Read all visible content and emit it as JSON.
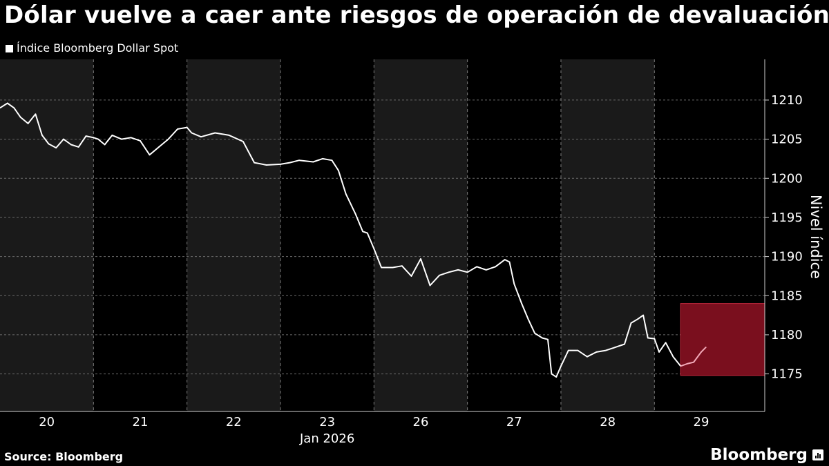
{
  "title": "Dólar vuelve a caer ante riesgos de operación de devaluación",
  "legend": "Índice Bloomberg Dollar Spot",
  "source": "Source: Bloomberg",
  "brand": "Bloomberg",
  "colors": {
    "background": "#000000",
    "band": "#1a1a1a",
    "line": "#ffffff",
    "highlight": "#7a0f1e",
    "highlight_line": "#f2a9b8"
  },
  "chart_data": {
    "type": "line",
    "title": "Dólar vuelve a caer ante riesgos de operación de devaluación",
    "ylabel": "Nivel índice",
    "xlabel": "Jan 2026",
    "series": [
      {
        "name": "Índice Bloomberg Dollar Spot",
        "points": [
          [
            0.0,
            1209.0
          ],
          [
            0.08,
            1209.6
          ],
          [
            0.15,
            1209.0
          ],
          [
            0.22,
            1207.8
          ],
          [
            0.3,
            1207.0
          ],
          [
            0.38,
            1208.2
          ],
          [
            0.45,
            1205.5
          ],
          [
            0.52,
            1204.4
          ],
          [
            0.6,
            1203.9
          ],
          [
            0.68,
            1205.0
          ],
          [
            0.76,
            1204.3
          ],
          [
            0.84,
            1204.0
          ],
          [
            0.92,
            1205.4
          ],
          [
            1.0,
            1205.2
          ],
          [
            1.05,
            1205.0
          ],
          [
            1.12,
            1204.3
          ],
          [
            1.2,
            1205.5
          ],
          [
            1.3,
            1205.0
          ],
          [
            1.4,
            1205.2
          ],
          [
            1.5,
            1204.8
          ],
          [
            1.6,
            1203.0
          ],
          [
            1.7,
            1204.0
          ],
          [
            1.8,
            1205.0
          ],
          [
            1.9,
            1206.3
          ],
          [
            2.0,
            1206.5
          ],
          [
            2.05,
            1205.8
          ],
          [
            2.15,
            1205.3
          ],
          [
            2.3,
            1205.8
          ],
          [
            2.45,
            1205.5
          ],
          [
            2.6,
            1204.7
          ],
          [
            2.72,
            1202.0
          ],
          [
            2.85,
            1201.7
          ],
          [
            3.0,
            1201.8
          ],
          [
            3.1,
            1202.0
          ],
          [
            3.2,
            1202.3
          ],
          [
            3.35,
            1202.1
          ],
          [
            3.45,
            1202.5
          ],
          [
            3.55,
            1202.3
          ],
          [
            3.62,
            1201.0
          ],
          [
            3.7,
            1198.0
          ],
          [
            3.8,
            1195.5
          ],
          [
            3.88,
            1193.2
          ],
          [
            3.93,
            1193.0
          ],
          [
            4.0,
            1191.0
          ],
          [
            4.08,
            1188.6
          ],
          [
            4.2,
            1188.6
          ],
          [
            4.3,
            1188.8
          ],
          [
            4.4,
            1187.5
          ],
          [
            4.5,
            1189.7
          ],
          [
            4.6,
            1186.3
          ],
          [
            4.7,
            1187.6
          ],
          [
            4.8,
            1188.0
          ],
          [
            4.9,
            1188.3
          ],
          [
            5.0,
            1188.0
          ],
          [
            5.1,
            1188.7
          ],
          [
            5.2,
            1188.3
          ],
          [
            5.3,
            1188.7
          ],
          [
            5.4,
            1189.6
          ],
          [
            5.45,
            1189.3
          ],
          [
            5.5,
            1186.5
          ],
          [
            5.58,
            1184.0
          ],
          [
            5.65,
            1182.0
          ],
          [
            5.72,
            1180.2
          ],
          [
            5.8,
            1179.6
          ],
          [
            5.86,
            1179.4
          ],
          [
            5.9,
            1175.0
          ],
          [
            5.95,
            1174.6
          ],
          [
            6.0,
            1176.0
          ],
          [
            6.08,
            1178.0
          ],
          [
            6.18,
            1178.0
          ],
          [
            6.28,
            1177.2
          ],
          [
            6.38,
            1177.8
          ],
          [
            6.48,
            1178.0
          ],
          [
            6.58,
            1178.4
          ],
          [
            6.68,
            1178.8
          ],
          [
            6.75,
            1181.5
          ],
          [
            6.82,
            1182.0
          ],
          [
            6.88,
            1182.5
          ],
          [
            6.93,
            1179.6
          ],
          [
            7.0,
            1179.5
          ],
          [
            7.05,
            1177.8
          ],
          [
            7.12,
            1179.0
          ],
          [
            7.2,
            1177.2
          ],
          [
            7.28,
            1176.0
          ],
          [
            7.35,
            1176.3
          ],
          [
            7.42,
            1176.5
          ],
          [
            7.5,
            1177.8
          ],
          [
            7.55,
            1178.4
          ]
        ]
      }
    ],
    "highlight_series_from": 7.28,
    "x_ticks": [
      {
        "x": 0.5,
        "label": "20"
      },
      {
        "x": 1.5,
        "label": "21"
      },
      {
        "x": 2.5,
        "label": "22"
      },
      {
        "x": 3.5,
        "label": "23"
      },
      {
        "x": 4.5,
        "label": "26"
      },
      {
        "x": 5.5,
        "label": "27"
      },
      {
        "x": 6.5,
        "label": "28"
      },
      {
        "x": 7.5,
        "label": "29"
      }
    ],
    "x_date_label": "Jan 2026",
    "y_ticks": [
      1210,
      1205,
      1200,
      1195,
      1190,
      1185,
      1180,
      1175
    ],
    "ylim": [
      1170.2,
      1215.2
    ],
    "xlim": [
      0,
      8.18
    ],
    "shaded_days": [
      0,
      2,
      4,
      6
    ],
    "highlight_box": {
      "x0": 7.28,
      "x1": 8.18,
      "y0": 1174.8,
      "y1": 1184.0
    },
    "grid": true
  }
}
